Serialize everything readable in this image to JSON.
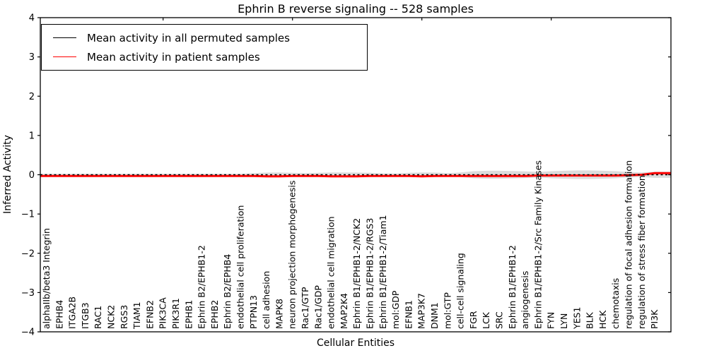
{
  "chart_data": {
    "type": "line",
    "title": "Ephrin B reverse signaling -- 528 samples",
    "xlabel": "Cellular Entities",
    "ylabel": "Inferred Activity",
    "ylim": [
      -4,
      4
    ],
    "yticks": [
      4,
      3,
      2,
      1,
      0,
      -1,
      -2,
      -3,
      -4
    ],
    "grid": false,
    "legend_position": "upper left",
    "categories": [
      "alphaIIb/beta3 Integrin",
      "EPHB4",
      "ITGA2B",
      "ITGB3",
      "RAC1",
      "NCK2",
      "RGS3",
      "TIAM1",
      "EFNB2",
      "PIK3CA",
      "PIK3R1",
      "EPHB1",
      "Ephrin B2/EPHB1-2",
      "EPHB2",
      "Ephrin B2/EPHB4",
      "endothelial cell proliferation",
      "PTPN13",
      "cell adhesion",
      "MAPK8",
      "neuron projection morphogenesis",
      "Rac1/GTP",
      "Rac1/GDP",
      "endothelial cell migration",
      "MAP2K4",
      "Ephrin B1/EPHB1-2/NCK2",
      "Ephrin B1/EPHB1-2/RGS3",
      "Ephrin B1/EPHB1-2/Tiam1",
      "mol:GDP",
      "EFNB1",
      "MAP3K7",
      "DNM1",
      "mol:GTP",
      "cell-cell signaling",
      "FGR",
      "LCK",
      "SRC",
      "Ephrin B1/EPHB1-2",
      "angiogenesis",
      "Ephrin B1/EPHB1-2/Src Family Kinases",
      "FYN",
      "LYN",
      "YES1",
      "BLK",
      "HCK",
      "chemotaxis",
      "regulation of focal adhesion formation",
      "regulation of stress fiber formation",
      "PI3K"
    ],
    "series": [
      {
        "name": "Mean activity in all permuted samples",
        "color": "#000000",
        "style": "dashed",
        "values": [
          0,
          0,
          0,
          0,
          0,
          0,
          0,
          0,
          0,
          0,
          0,
          0,
          0,
          0,
          0,
          0,
          0,
          0,
          0,
          0,
          0,
          0,
          0,
          0,
          0,
          0,
          0,
          0,
          0,
          0,
          0,
          0,
          0,
          0,
          0,
          0,
          0,
          0,
          0,
          0,
          0,
          0,
          0,
          0,
          0,
          0,
          0,
          0
        ]
      },
      {
        "name": "Mean activity in patient samples",
        "color": "#ff0000",
        "style": "solid",
        "values": [
          -0.03,
          -0.03,
          -0.03,
          -0.03,
          -0.03,
          -0.03,
          -0.03,
          -0.03,
          -0.03,
          -0.03,
          -0.03,
          -0.03,
          -0.03,
          -0.03,
          -0.03,
          -0.03,
          -0.03,
          -0.04,
          -0.04,
          -0.03,
          -0.03,
          -0.03,
          -0.04,
          -0.04,
          -0.04,
          -0.03,
          -0.03,
          -0.03,
          -0.03,
          -0.04,
          -0.03,
          -0.03,
          -0.03,
          -0.03,
          -0.03,
          -0.03,
          -0.03,
          -0.03,
          -0.02,
          -0.02,
          -0.02,
          -0.02,
          -0.02,
          -0.02,
          -0.02,
          -0.01,
          0,
          0.04
        ]
      }
    ],
    "band": {
      "description": "spread of permuted sample activity around the mean",
      "color": "#dcdcdc",
      "half_widths": [
        0.025,
        0.025,
        0.025,
        0.025,
        0.025,
        0.025,
        0.025,
        0.025,
        0.025,
        0.025,
        0.025,
        0.025,
        0.025,
        0.025,
        0.025,
        0.025,
        0.04,
        0.055,
        0.06,
        0.05,
        0.04,
        0.05,
        0.06,
        0.06,
        0.055,
        0.05,
        0.035,
        0.03,
        0.05,
        0.06,
        0.055,
        0.04,
        0.06,
        0.09,
        0.1,
        0.1,
        0.095,
        0.085,
        0.07,
        0.09,
        0.1,
        0.11,
        0.11,
        0.1,
        0.09,
        0.07,
        0.06,
        0.08
      ]
    }
  }
}
